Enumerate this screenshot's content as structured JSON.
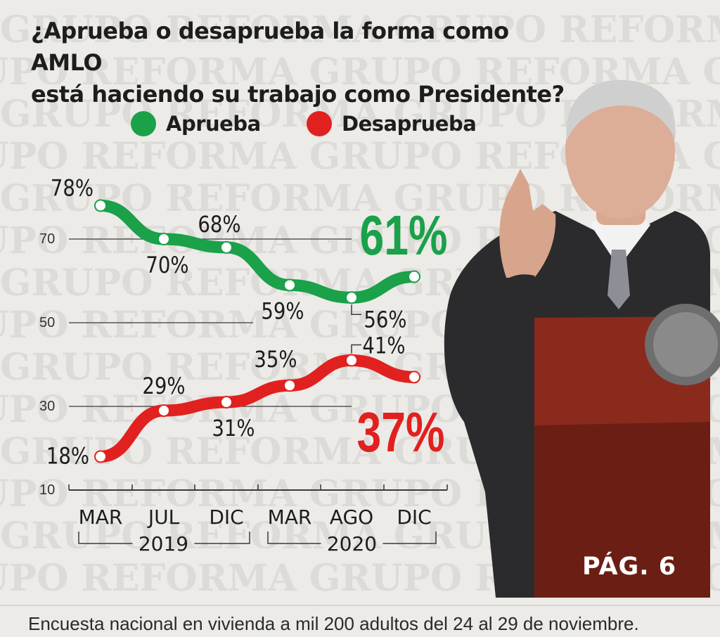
{
  "header": {
    "title_line1": "¿Aprueba o desaprueba la forma como AMLO",
    "title_line2": "está haciendo su trabajo como Presidente?"
  },
  "legend": {
    "items": [
      {
        "label": "Aprueba",
        "color": "#1aa14a"
      },
      {
        "label": "Desaprueba",
        "color": "#e1211f"
      }
    ]
  },
  "chart_data": {
    "type": "line",
    "x": [
      "MAR",
      "JUL",
      "DIC",
      "MAR",
      "AGO",
      "DIC"
    ],
    "year_groups": [
      {
        "label": "2019",
        "start": 0,
        "end": 2
      },
      {
        "label": "2020",
        "start": 3,
        "end": 5
      }
    ],
    "ylim": [
      10,
      80
    ],
    "y_ticks": [
      10,
      30,
      50,
      70
    ],
    "grid": true,
    "series": [
      {
        "name": "Aprueba",
        "color": "#1aa14a",
        "values": [
          78,
          70,
          68,
          59,
          56,
          61
        ],
        "labels": [
          "78%",
          "70%",
          "68%",
          "59%",
          "56%",
          "61%"
        ]
      },
      {
        "name": "Desaprueba",
        "color": "#e1211f",
        "values": [
          18,
          29,
          31,
          35,
          41,
          37
        ],
        "labels": [
          "18%",
          "29%",
          "31%",
          "35%",
          "41%",
          "37%"
        ]
      }
    ]
  },
  "photo": {
    "subject": "person-at-podium",
    "colors": {
      "suit": "#2b2b2d",
      "podium": "#7a2418",
      "background": "#e6e5e2"
    }
  },
  "page_ref": "PÁG. 6",
  "watermark": "GRUPO REFORMA",
  "footnote": "Encuesta nacional en vivienda a mil 200 adultos del 24 al 29 de noviembre."
}
